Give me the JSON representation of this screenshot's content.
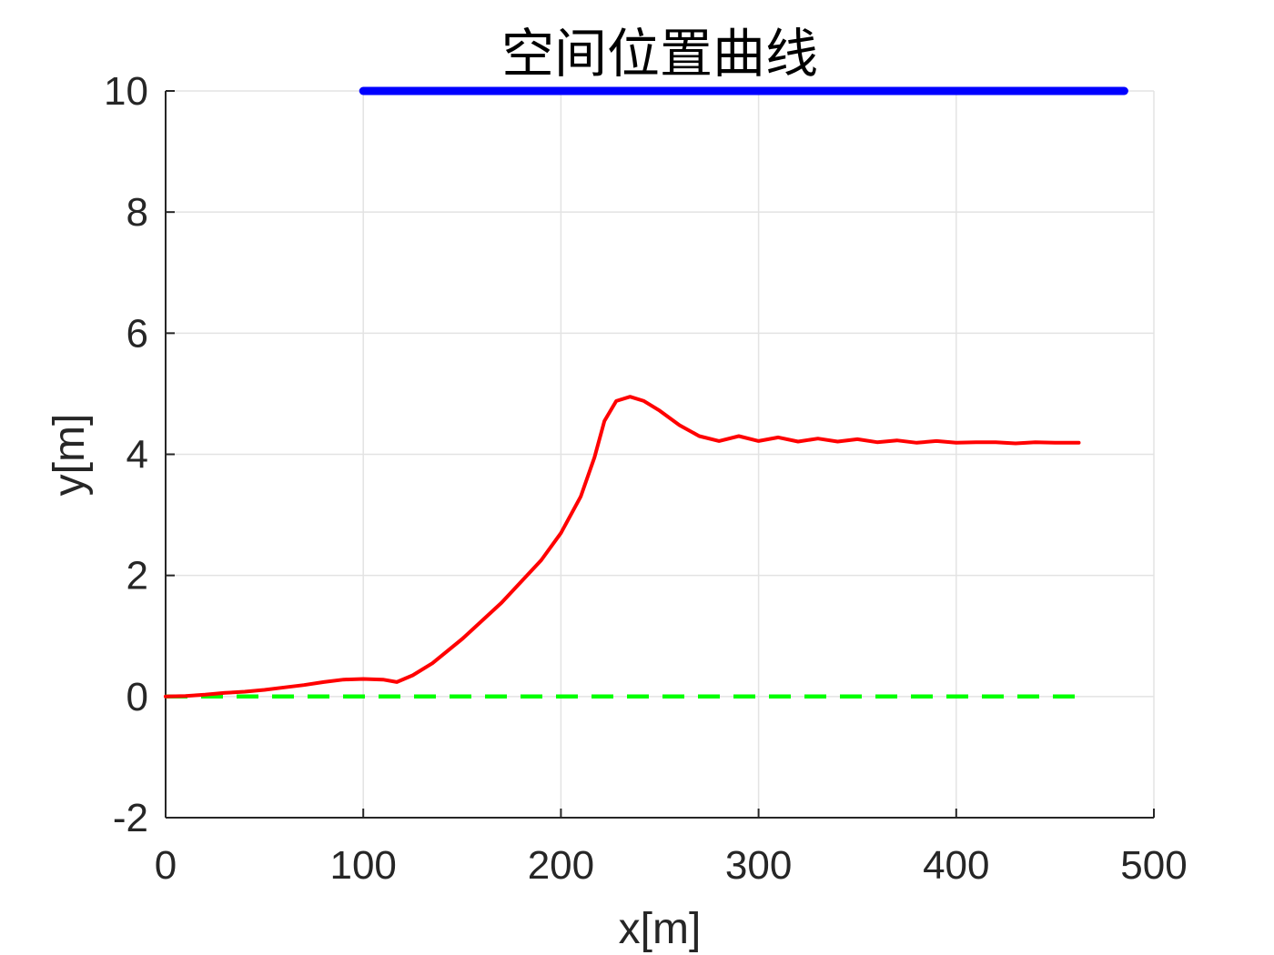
{
  "chart_data": {
    "type": "line",
    "title": "空间位置曲线",
    "xlabel": "x[m]",
    "ylabel": "y[m]",
    "xlim": [
      0,
      500
    ],
    "ylim": [
      -2,
      10
    ],
    "xticks": [
      0,
      100,
      200,
      300,
      400,
      500
    ],
    "yticks": [
      -2,
      0,
      2,
      4,
      6,
      8,
      10
    ],
    "grid": true,
    "legend": "none",
    "series": [
      {
        "color": "#0000ff",
        "style": "solid-thick",
        "x": [
          100,
          485
        ],
        "y": [
          10,
          10
        ]
      },
      {
        "color": "#00ff00",
        "style": "dashed",
        "x": [
          0,
          462
        ],
        "y": [
          0,
          0
        ]
      },
      {
        "color": "#ff0000",
        "style": "solid",
        "x": [
          0,
          10,
          20,
          30,
          40,
          50,
          60,
          70,
          80,
          90,
          100,
          110,
          117,
          125,
          135,
          150,
          170,
          190,
          200,
          210,
          217,
          222,
          228,
          235,
          242,
          250,
          260,
          270,
          280,
          290,
          300,
          310,
          320,
          330,
          340,
          350,
          360,
          370,
          380,
          390,
          400,
          410,
          420,
          430,
          440,
          450,
          462
        ],
        "y": [
          0.0,
          0.01,
          0.03,
          0.06,
          0.08,
          0.11,
          0.15,
          0.19,
          0.24,
          0.28,
          0.29,
          0.28,
          0.24,
          0.35,
          0.55,
          0.95,
          1.55,
          2.25,
          2.7,
          3.3,
          3.95,
          4.55,
          4.88,
          4.95,
          4.88,
          4.72,
          4.48,
          4.3,
          4.22,
          4.3,
          4.22,
          4.28,
          4.21,
          4.26,
          4.21,
          4.25,
          4.2,
          4.23,
          4.19,
          4.22,
          4.19,
          4.2,
          4.2,
          4.18,
          4.2,
          4.19,
          4.19
        ]
      }
    ]
  }
}
